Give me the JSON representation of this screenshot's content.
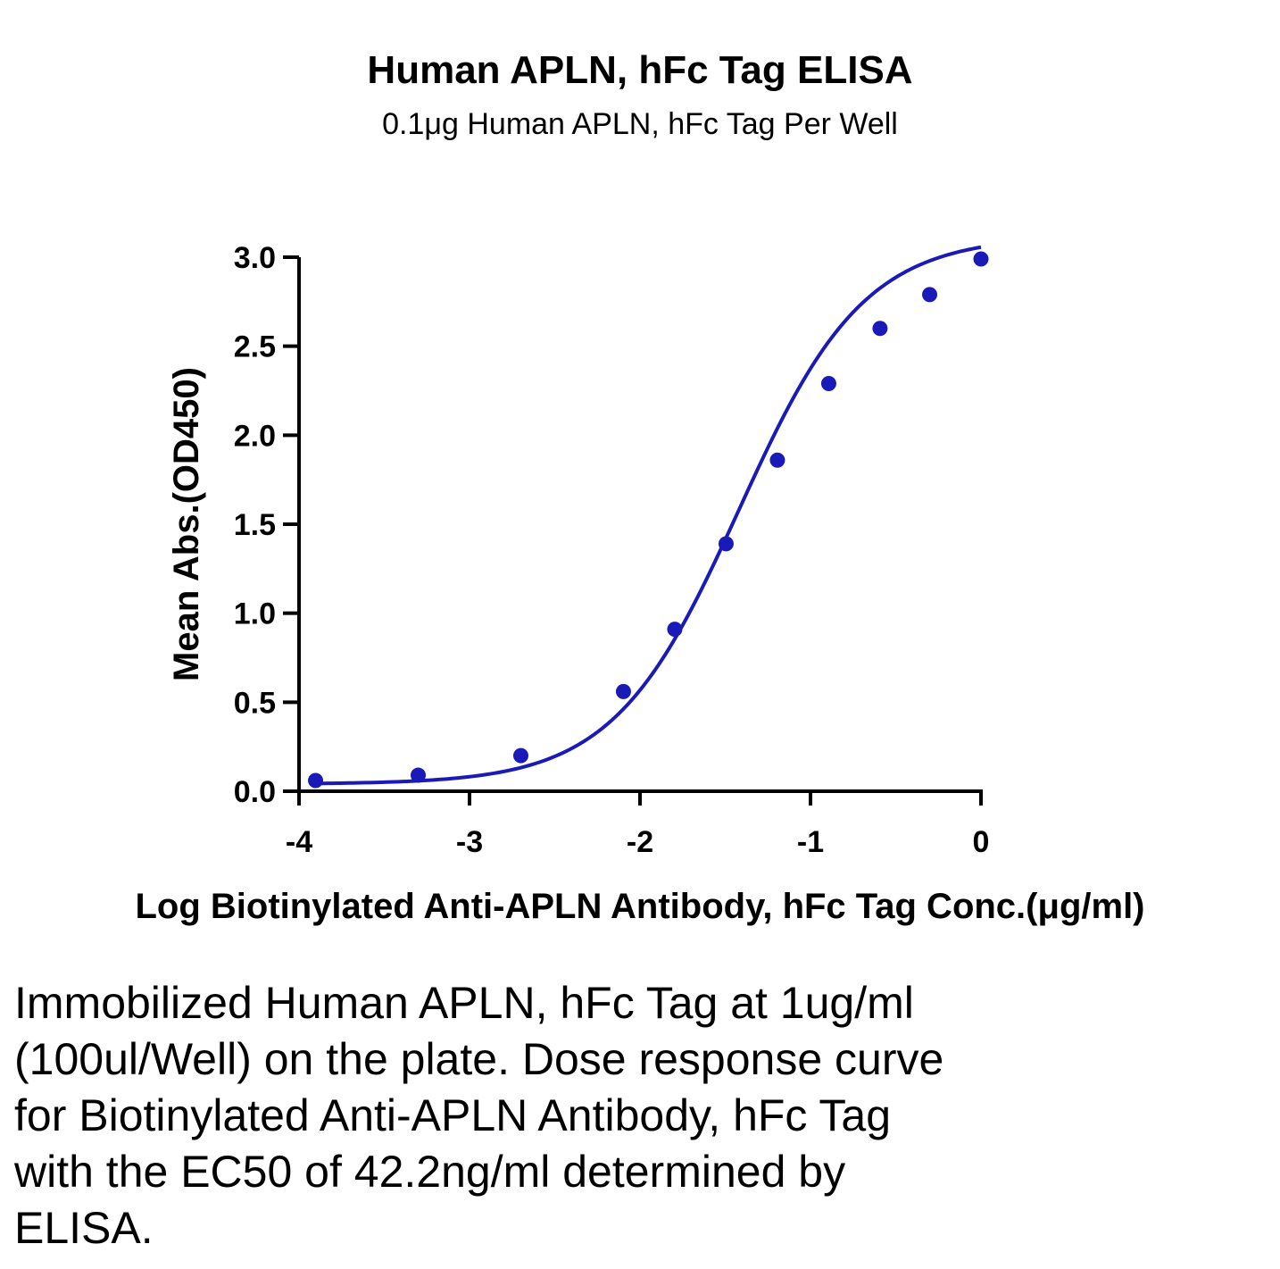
{
  "chart_data": {
    "type": "scatter",
    "title": "Human APLN, hFc Tag ELISA",
    "subtitle": "0.1μg Human APLN, hFc Tag Per Well",
    "xlabel": "Log Biotinylated Anti-APLN Antibody, hFc Tag Conc.(μg/ml)",
    "ylabel": "Mean Abs.(OD450)",
    "xlim": [
      -4,
      0
    ],
    "ylim": [
      0,
      3.0
    ],
    "x_ticks": [
      "-4",
      "-3",
      "-2",
      "-1",
      "0"
    ],
    "y_ticks": [
      "0.0",
      "0.5",
      "1.0",
      "1.5",
      "2.0",
      "2.5",
      "3.0"
    ],
    "grid": false,
    "legend": "none",
    "color": "#1a1ab8",
    "fit_curve": "four-parameter logistic",
    "series": [
      {
        "x": [
          -3.903,
          -3.301,
          -2.699,
          -2.097,
          -1.796,
          -1.495,
          -1.194,
          -0.893,
          -0.592,
          -0.301,
          0.0
        ],
        "y": [
          0.06,
          0.09,
          0.2,
          0.56,
          0.91,
          1.39,
          1.86,
          2.29,
          2.6,
          2.79,
          2.99
        ]
      }
    ]
  },
  "caption": "Immobilized Human APLN, hFc Tag at 1ug/ml (100ul/Well) on the plate. Dose response curve for Biotinylated Anti-APLN Antibody, hFc Tag with the EC50 of 42.2ng/ml determined by ELISA."
}
